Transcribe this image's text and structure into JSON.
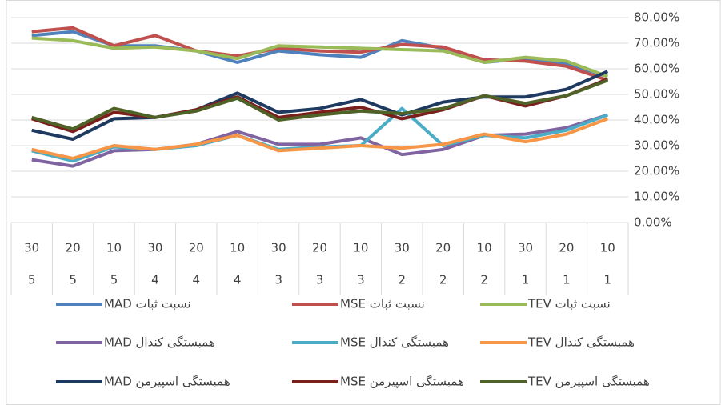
{
  "chart_data": {
    "type": "line",
    "categories": [
      "30",
      "20",
      "10",
      "30",
      "20",
      "10",
      "30",
      "20",
      "10",
      "30",
      "20",
      "10",
      "30",
      "20",
      "10"
    ],
    "category_groups": [
      "5",
      "5",
      "5",
      "4",
      "4",
      "4",
      "3",
      "3",
      "3",
      "2",
      "2",
      "2",
      "1",
      "1",
      "1"
    ],
    "ylim": [
      0,
      80
    ],
    "yticks": [
      {
        "value": 0,
        "label": "0.00%"
      },
      {
        "value": 10,
        "label": "10.00%"
      },
      {
        "value": 20,
        "label": "20.00%"
      },
      {
        "value": 30,
        "label": "30.00%"
      },
      {
        "value": 40,
        "label": "40.00%"
      },
      {
        "value": 50,
        "label": "50.00%"
      },
      {
        "value": 60,
        "label": "60.00%"
      },
      {
        "value": 70,
        "label": "70.00%"
      },
      {
        "value": 80,
        "label": "80.00%"
      }
    ],
    "grid": true,
    "series": [
      {
        "name": "نسبت ثبات MAD",
        "color": "#4f81bd",
        "values": [
          73,
          74.5,
          69,
          69,
          67,
          62.5,
          67,
          65.5,
          64.5,
          71,
          68,
          62.5,
          64,
          62,
          57
        ]
      },
      {
        "name": "نسبت ثبات MSE",
        "color": "#c0504d",
        "values": [
          74.5,
          76,
          69,
          73,
          67,
          65,
          68,
          67,
          66.5,
          69.5,
          68.5,
          63.5,
          63,
          61,
          55.5
        ]
      },
      {
        "name": "نسبت ثبات TEV",
        "color": "#9bbb59",
        "values": [
          72,
          71,
          68,
          68.5,
          67,
          64,
          69,
          68.5,
          68,
          67.5,
          67,
          62.5,
          64.5,
          63,
          57
        ]
      },
      {
        "name": "همبستگی کندال MAD",
        "color": "#8064a2",
        "values": [
          24.5,
          22,
          28,
          28.5,
          30.5,
          35.5,
          30.5,
          30.5,
          33,
          26.5,
          28.5,
          34,
          34.5,
          37,
          42
        ]
      },
      {
        "name": "همبستگی کندال MSE",
        "color": "#4bacc6",
        "values": [
          28,
          24,
          29.5,
          28.5,
          30,
          34,
          28.5,
          29.5,
          30,
          44.5,
          30,
          34,
          33,
          36,
          42
        ]
      },
      {
        "name": "همبستگی کندال TEV",
        "color": "#f79646",
        "values": [
          28.5,
          25,
          30,
          28.5,
          30.5,
          34,
          28,
          29,
          30,
          29,
          30.5,
          34.5,
          31.5,
          34.5,
          40.5
        ]
      },
      {
        "name": "همبستگی اسپیرمن MAD",
        "color": "#1f3a60",
        "values": [
          36,
          32.5,
          40.5,
          41,
          44,
          50.5,
          43,
          44.5,
          48,
          42,
          47,
          49,
          49,
          52,
          59
        ]
      },
      {
        "name": "همبستگی اسپیرمن MSE",
        "color": "#7b1f1d",
        "values": [
          40.5,
          35.5,
          43,
          41,
          44,
          49,
          41,
          43,
          45,
          40.5,
          44,
          49.5,
          45.5,
          49.5,
          56
        ]
      },
      {
        "name": "همبستگی اسپیرمن TEV",
        "color": "#4f6228",
        "values": [
          41,
          36.5,
          44.5,
          41,
          43.5,
          48.5,
          40,
          42,
          43.5,
          42.5,
          44.5,
          49.5,
          46.5,
          49.5,
          55.5
        ]
      }
    ]
  }
}
